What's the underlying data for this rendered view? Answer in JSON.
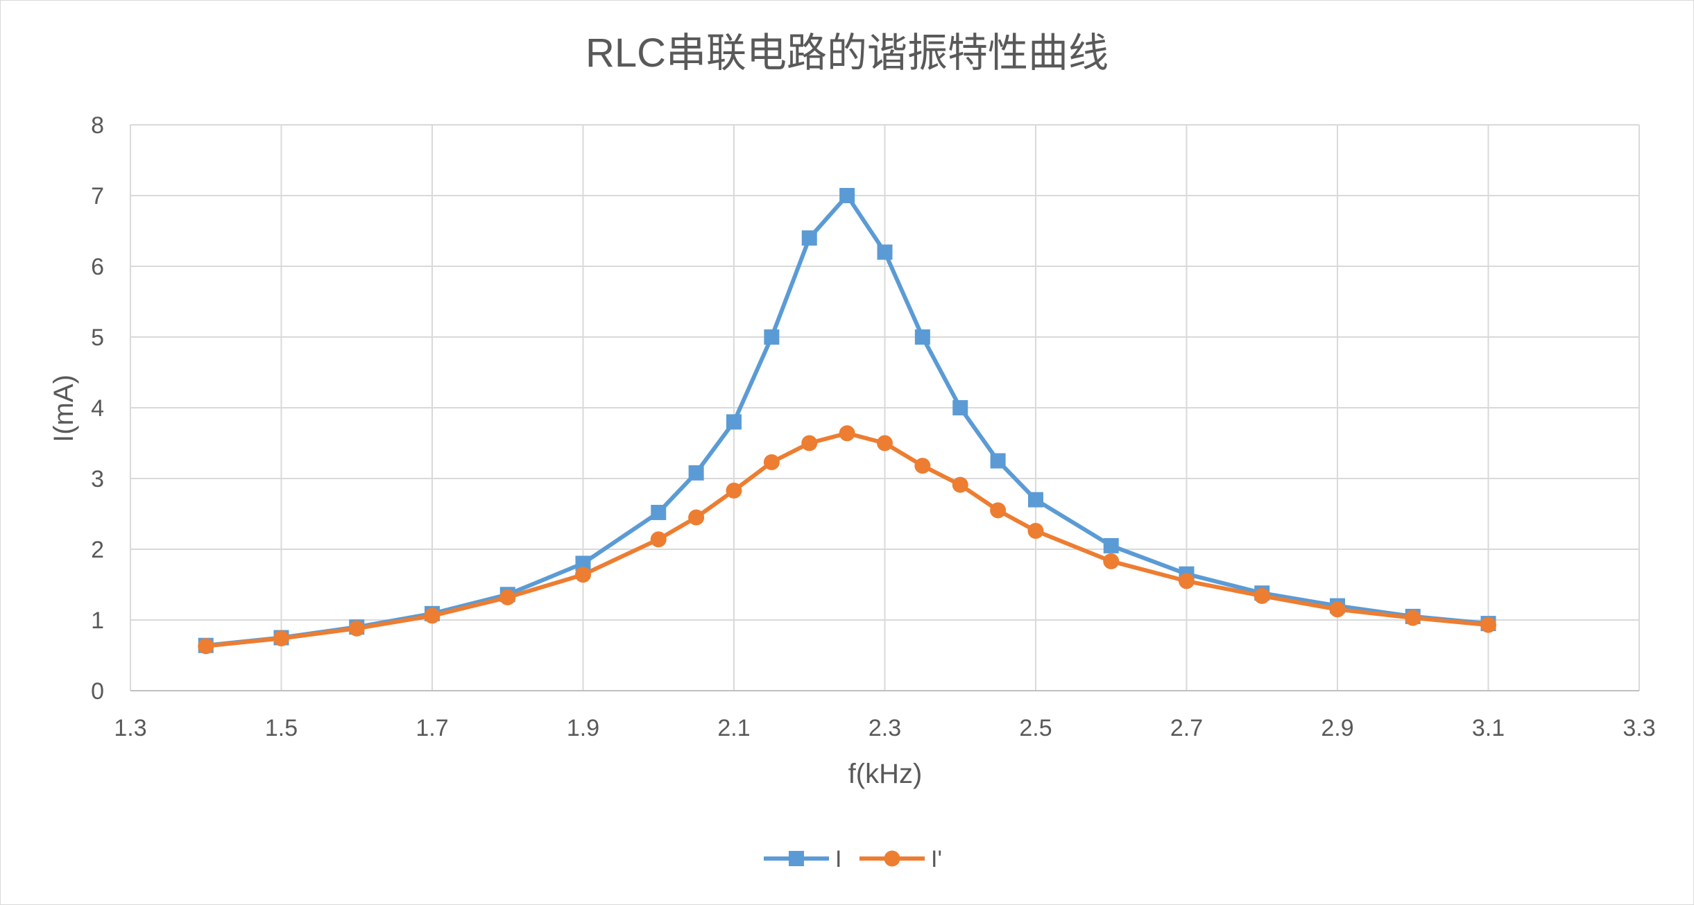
{
  "chart_data": {
    "type": "line",
    "title": "RLC串联电路的谐振特性曲线",
    "xlabel": "f(kHz)",
    "ylabel": "I(mA)",
    "xlim": [
      1.3,
      3.3
    ],
    "ylim": [
      0,
      8
    ],
    "xticks": [
      "1.3",
      "1.5",
      "1.7",
      "1.9",
      "2.1",
      "2.3",
      "2.5",
      "2.7",
      "2.9",
      "3.1",
      "3.3"
    ],
    "yticks": [
      "0",
      "1",
      "2",
      "3",
      "4",
      "5",
      "6",
      "7",
      "8"
    ],
    "grid": true,
    "legend_position": "bottom",
    "series": [
      {
        "name": "I",
        "color": "#5b9bd5",
        "marker": "square",
        "x": [
          1.4,
          1.5,
          1.6,
          1.7,
          1.8,
          1.9,
          2.0,
          2.05,
          2.1,
          2.15,
          2.2,
          2.25,
          2.3,
          2.35,
          2.4,
          2.45,
          2.5,
          2.6,
          2.7,
          2.8,
          2.9,
          3.0,
          3.1
        ],
        "y": [
          0.64,
          0.75,
          0.9,
          1.09,
          1.36,
          1.8,
          2.52,
          3.08,
          3.8,
          5.0,
          6.4,
          7.0,
          6.2,
          5.0,
          4.0,
          3.25,
          2.7,
          2.05,
          1.65,
          1.38,
          1.2,
          1.05,
          0.95
        ]
      },
      {
        "name": "I'",
        "color": "#ed7d31",
        "marker": "circle",
        "x": [
          1.4,
          1.5,
          1.6,
          1.7,
          1.8,
          1.9,
          2.0,
          2.05,
          2.1,
          2.15,
          2.2,
          2.25,
          2.3,
          2.35,
          2.4,
          2.45,
          2.5,
          2.6,
          2.7,
          2.8,
          2.9,
          3.0,
          3.1
        ],
        "y": [
          0.63,
          0.74,
          0.88,
          1.06,
          1.32,
          1.64,
          2.14,
          2.45,
          2.83,
          3.23,
          3.5,
          3.64,
          3.5,
          3.18,
          2.91,
          2.55,
          2.26,
          1.83,
          1.55,
          1.34,
          1.15,
          1.03,
          0.93
        ]
      }
    ]
  }
}
